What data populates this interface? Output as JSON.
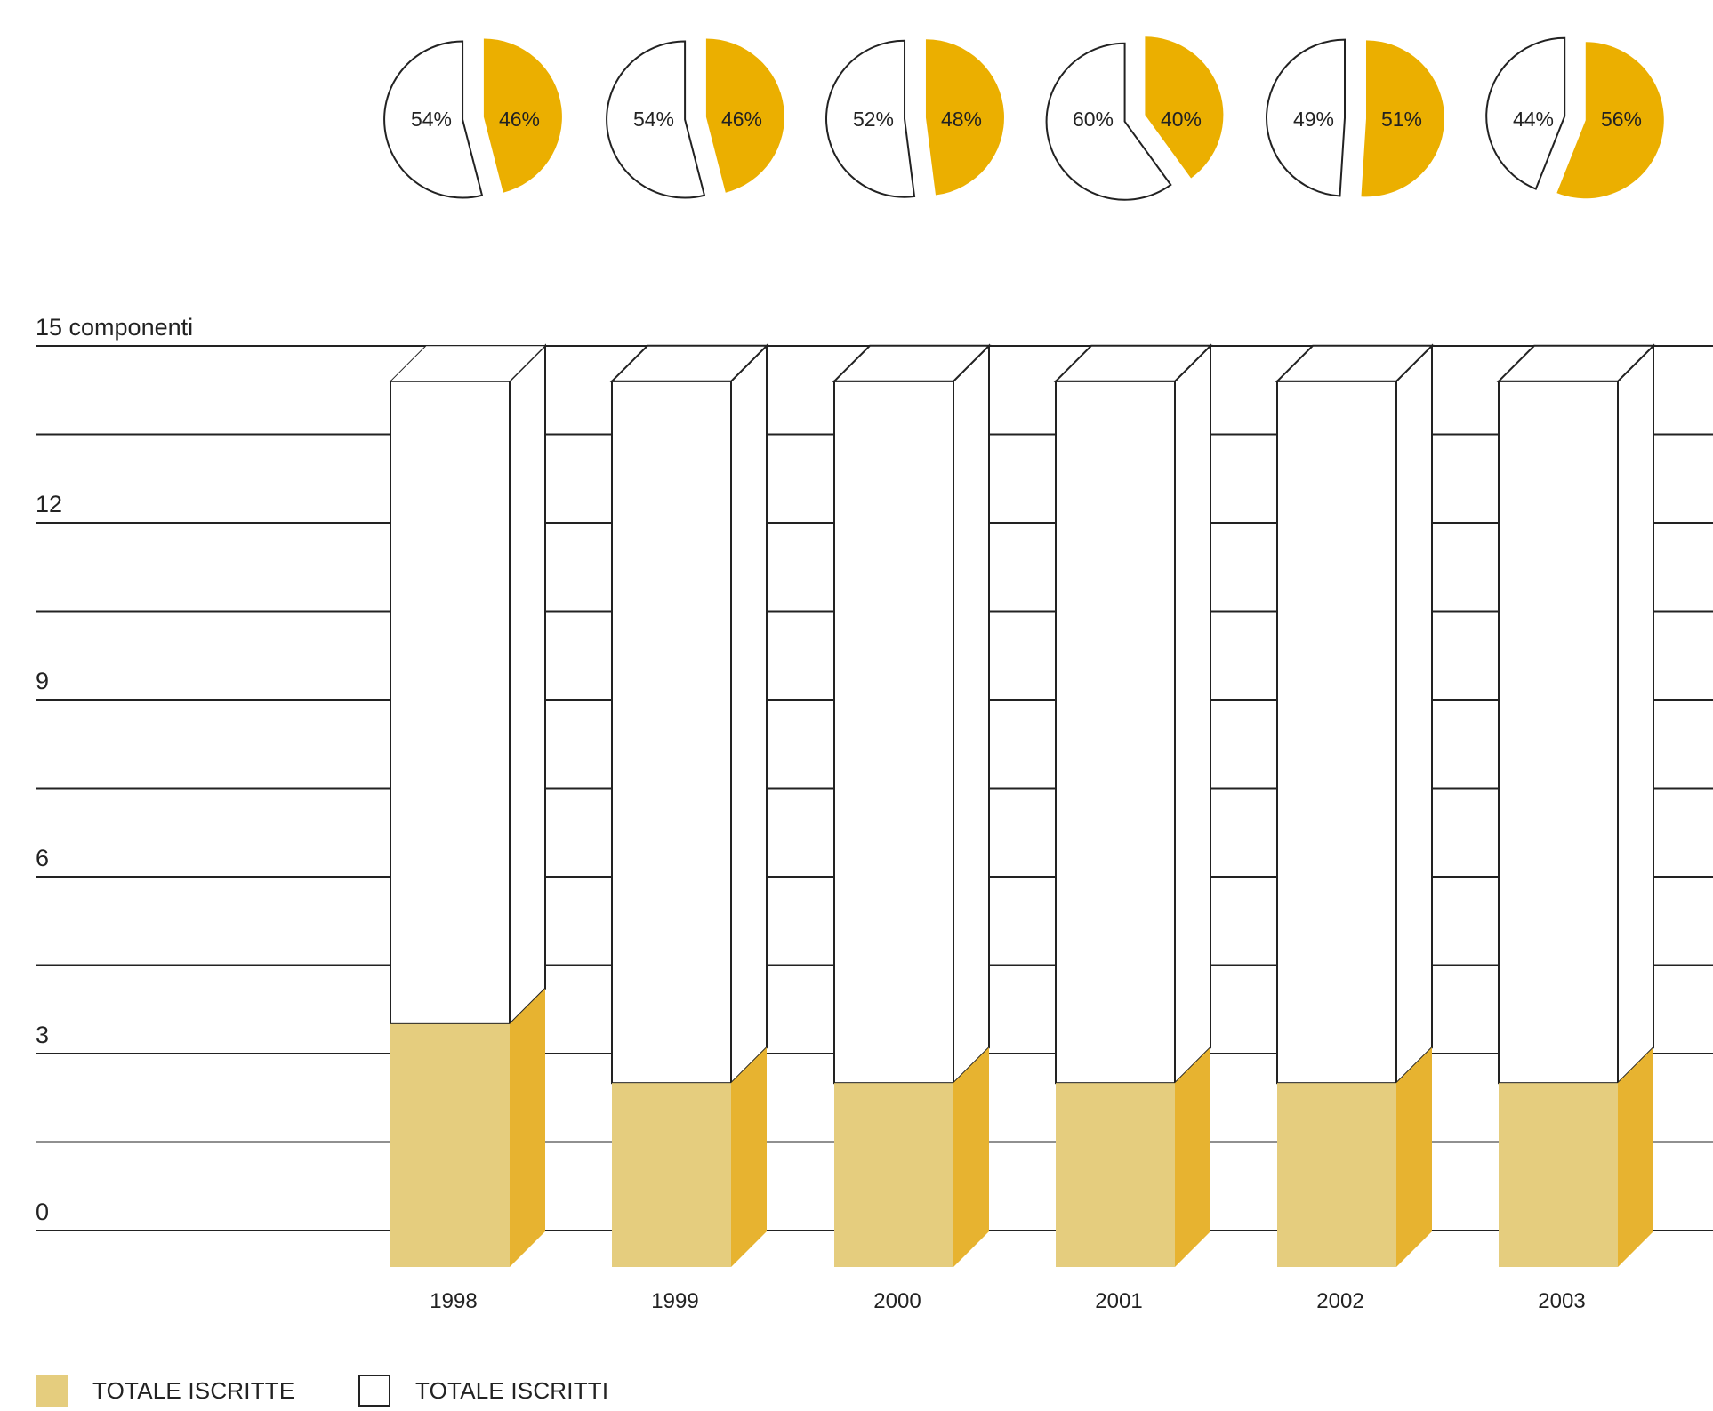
{
  "chart_data": {
    "type": "bar",
    "title": "",
    "ylabel": "",
    "y_axis_unit": "componenti",
    "categories": [
      "1998",
      "1999",
      "2000",
      "2001",
      "2002",
      "2003"
    ],
    "series": [
      {
        "name": "TOTALE ISCRITTE",
        "values": [
          3.5,
          2.5,
          2.5,
          2.5,
          2.5,
          2.5
        ]
      },
      {
        "name": "TOTALE ISCRITTI",
        "values": [
          14.4,
          14.4,
          14.4,
          14.4,
          14.4,
          14.4
        ]
      }
    ],
    "ylim": [
      0,
      15
    ],
    "y_ticks": [
      0,
      3,
      6,
      9,
      12,
      15
    ],
    "grid": true,
    "legend_position": "bottom-left",
    "pies": [
      {
        "year": "1998",
        "white_pct": 54,
        "yellow_pct": 46,
        "white_label": "54%",
        "yellow_label": "46%"
      },
      {
        "year": "1999",
        "white_pct": 54,
        "yellow_pct": 46,
        "white_label": "54%",
        "yellow_label": "46%"
      },
      {
        "year": "2000",
        "white_pct": 52,
        "yellow_pct": 48,
        "white_label": "52%",
        "yellow_label": "48%"
      },
      {
        "year": "2001",
        "white_pct": 60,
        "yellow_pct": 40,
        "white_label": "60%",
        "yellow_label": "40%"
      },
      {
        "year": "2002",
        "white_pct": 49,
        "yellow_pct": 51,
        "white_label": "49%",
        "yellow_label": "51%"
      },
      {
        "year": "2003",
        "white_pct": 44,
        "yellow_pct": 56,
        "white_label": "44%",
        "yellow_label": "56%"
      }
    ],
    "colors": {
      "iscritte_front": "#E5CD7E",
      "iscritte_side": "#E7B330",
      "pie_yellow": "#EBAF00",
      "line": "#222222",
      "white": "#FFFFFF"
    }
  },
  "legend": {
    "iscritte_label": "TOTALE ISCRITTE",
    "iscritti_label": "TOTALE ISCRITTI"
  }
}
